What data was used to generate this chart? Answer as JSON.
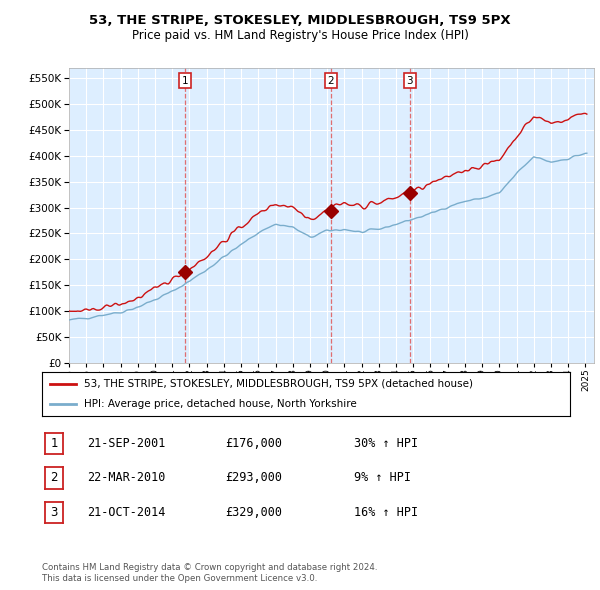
{
  "title": "53, THE STRIPE, STOKESLEY, MIDDLESBROUGH, TS9 5PX",
  "subtitle": "Price paid vs. HM Land Registry's House Price Index (HPI)",
  "legend_line1": "53, THE STRIPE, STOKESLEY, MIDDLESBROUGH, TS9 5PX (detached house)",
  "legend_line2": "HPI: Average price, detached house, North Yorkshire",
  "footer1": "Contains HM Land Registry data © Crown copyright and database right 2024.",
  "footer2": "This data is licensed under the Open Government Licence v3.0.",
  "transactions": [
    {
      "num": 1,
      "date": "21-SEP-2001",
      "price": "£176,000",
      "change": "30% ↑ HPI"
    },
    {
      "num": 2,
      "date": "22-MAR-2010",
      "price": "£293,000",
      "change": "9% ↑ HPI"
    },
    {
      "num": 3,
      "date": "21-OCT-2014",
      "price": "£329,000",
      "change": "16% ↑ HPI"
    }
  ],
  "transaction_years": [
    2001.72,
    2010.22,
    2014.8
  ],
  "transaction_prices": [
    176000,
    293000,
    329000
  ],
  "vline_color": "#e06060",
  "dot_color": "#990000",
  "hpi_color": "#7aadcc",
  "price_color": "#cc1111",
  "ylim": [
    0,
    570000
  ],
  "yticks": [
    0,
    50000,
    100000,
    150000,
    200000,
    250000,
    300000,
    350000,
    400000,
    450000,
    500000,
    550000
  ],
  "background_color": "#ffffff",
  "plot_bg_color": "#ddeeff",
  "grid_color": "#ffffff"
}
